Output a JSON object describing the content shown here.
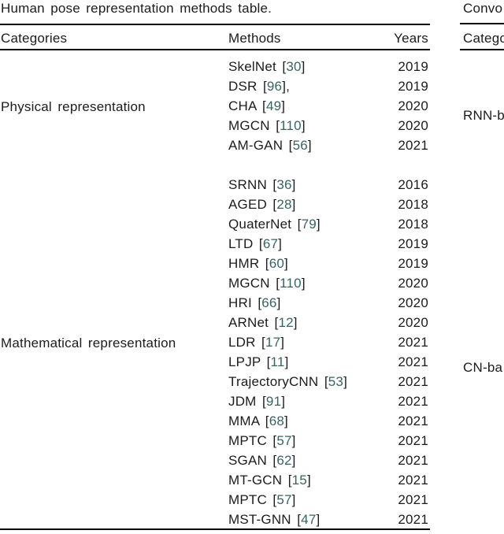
{
  "page": {
    "background_color": "#ffffff",
    "text_color": "#1c1c1c",
    "rule_color": "#000000",
    "citation_color": "#376363"
  },
  "left_table": {
    "caption": "Human pose representation methods table.",
    "columns": [
      "Categories",
      "Methods",
      "Years"
    ],
    "bracket_open": "[",
    "bracket_close": "]",
    "groups": [
      {
        "category": "Physical representation",
        "rows": [
          {
            "name": "SkelNet",
            "ref": "30",
            "after": "",
            "year": "2019"
          },
          {
            "name": "DSR",
            "ref": "96",
            "after": ",",
            "year": "2019"
          },
          {
            "name": "CHA",
            "ref": "49",
            "after": "",
            "year": "2020"
          },
          {
            "name": "MGCN",
            "ref": "110",
            "after": "",
            "year": "2020"
          },
          {
            "name": "AM-GAN",
            "ref": "56",
            "after": "",
            "year": "2021"
          }
        ]
      },
      {
        "category": "Mathematical representation",
        "rows": [
          {
            "name": "SRNN",
            "ref": "36",
            "after": "",
            "year": "2016"
          },
          {
            "name": "AGED",
            "ref": "28",
            "after": "",
            "year": "2018"
          },
          {
            "name": "QuaterNet",
            "ref": "79",
            "after": "",
            "year": "2018"
          },
          {
            "name": "LTD",
            "ref": "67",
            "after": "",
            "year": "2019"
          },
          {
            "name": "HMR",
            "ref": "60",
            "after": "",
            "year": "2019"
          },
          {
            "name": "MGCN",
            "ref": "110",
            "after": "",
            "year": "2020"
          },
          {
            "name": "HRI",
            "ref": "66",
            "after": "",
            "year": "2020"
          },
          {
            "name": "ARNet",
            "ref": "12",
            "after": "",
            "year": "2020"
          },
          {
            "name": "LDR",
            "ref": "17",
            "after": "",
            "year": "2021"
          },
          {
            "name": "LPJP",
            "ref": "11",
            "after": "",
            "year": "2021"
          },
          {
            "name": "TrajectoryCNN",
            "ref": "53",
            "after": "",
            "year": "2021"
          },
          {
            "name": "JDM",
            "ref": "91",
            "after": "",
            "year": "2021"
          },
          {
            "name": "MMA",
            "ref": "68",
            "after": "",
            "year": "2021"
          },
          {
            "name": "MPTC",
            "ref": "57",
            "after": "",
            "year": "2021"
          },
          {
            "name": "SGAN",
            "ref": "62",
            "after": "",
            "year": "2021"
          },
          {
            "name": "MT-GCN",
            "ref": "15",
            "after": "",
            "year": "2021"
          },
          {
            "name": "MPTC",
            "ref": "57",
            "after": "",
            "year": "2021"
          },
          {
            "name": "MST-GNN",
            "ref": "47",
            "after": "",
            "year": "2021"
          }
        ]
      }
    ]
  },
  "right_table": {
    "caption_fragment": "Convo",
    "header_fragment": "Catego",
    "category_fragments": [
      {
        "label": "RNN-b"
      },
      {
        "label": "CN-ba"
      }
    ]
  }
}
